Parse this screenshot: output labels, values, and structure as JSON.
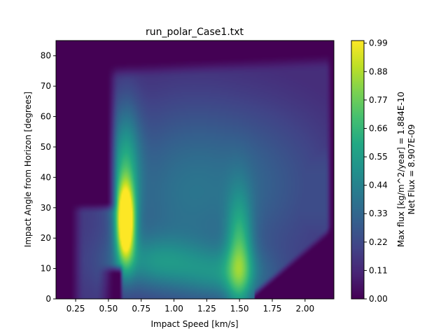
{
  "chart_data": {
    "type": "heatmap",
    "title": "run_polar_Case1.txt",
    "xlabel": "Impact Speed [km/s]",
    "ylabel": "Impact Angle from Horizon [degrees]",
    "xlim": [
      0.1,
      2.22
    ],
    "ylim": [
      0,
      85
    ],
    "xticks": [
      "0.25",
      "0.50",
      "0.75",
      "1.00",
      "1.25",
      "1.50",
      "1.75",
      "2.00"
    ],
    "yticks": [
      "0",
      "10",
      "20",
      "30",
      "40",
      "50",
      "60",
      "70",
      "80"
    ],
    "colormap": "viridis",
    "colorbar": {
      "ticks": [
        "0.00",
        "0.11",
        "0.22",
        "0.33",
        "0.44",
        "0.55",
        "0.66",
        "0.77",
        "0.88",
        "0.99"
      ],
      "range": [
        0,
        1.0
      ],
      "label_line1": "Max flux [kg/m^2/year] = 1.884E-10",
      "label_line2": "Net Flux = 8.907E-09"
    },
    "peak": {
      "speed_km_s": 0.63,
      "angle_deg": 25,
      "value": 0.99
    },
    "secondary_peak": {
      "speed_km_s": 1.5,
      "angle_deg": 12,
      "value": 0.5
    },
    "grid": false
  }
}
